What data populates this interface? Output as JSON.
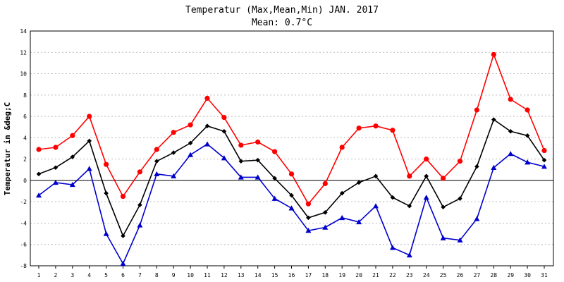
{
  "chart_data": {
    "type": "line",
    "title": "Temperatur (Max,Mean,Min) JAN. 2017",
    "subtitle": "Mean: 0.7°C",
    "xlabel": "",
    "ylabel": "Temperatur in &deg;C",
    "ylim": [
      -8,
      14
    ],
    "ytick_step": 2,
    "grid": true,
    "x": [
      1,
      2,
      3,
      4,
      5,
      6,
      7,
      8,
      9,
      10,
      11,
      12,
      13,
      14,
      15,
      16,
      17,
      18,
      19,
      20,
      21,
      22,
      23,
      24,
      25,
      26,
      27,
      28,
      29,
      30,
      31
    ],
    "series": [
      {
        "color": "#ff0000",
        "marker": "circle",
        "values": [
          2.9,
          3.1,
          4.2,
          6.0,
          1.5,
          -1.5,
          0.8,
          2.9,
          4.5,
          5.2,
          7.7,
          5.9,
          3.3,
          3.6,
          2.7,
          0.6,
          -2.2,
          -0.3,
          3.1,
          4.9,
          5.1,
          4.7,
          0.4,
          2.0,
          0.2,
          1.8,
          6.6,
          11.8,
          7.6,
          6.6,
          2.8
        ]
      },
      {
        "color": "#000000",
        "marker": "diamond",
        "values": [
          0.6,
          1.2,
          2.2,
          3.7,
          -1.2,
          -5.2,
          -2.3,
          1.8,
          2.6,
          3.5,
          5.1,
          4.6,
          1.8,
          1.9,
          0.2,
          -1.4,
          -3.5,
          -3.0,
          -1.2,
          -0.2,
          0.4,
          -1.6,
          -2.4,
          0.4,
          -2.5,
          -1.7,
          1.3,
          5.7,
          4.6,
          4.2,
          1.9
        ]
      },
      {
        "color": "#0000cc",
        "marker": "triangle",
        "values": [
          -1.4,
          -0.2,
          -0.4,
          1.1,
          -5.0,
          -7.8,
          -4.2,
          0.6,
          0.4,
          2.4,
          3.4,
          2.1,
          0.3,
          0.3,
          -1.7,
          -2.6,
          -4.7,
          -4.4,
          -3.5,
          -3.9,
          -2.4,
          -6.3,
          -7.0,
          -1.6,
          -5.4,
          -5.6,
          -3.6,
          1.2,
          2.5,
          1.7,
          1.3
        ]
      }
    ]
  }
}
